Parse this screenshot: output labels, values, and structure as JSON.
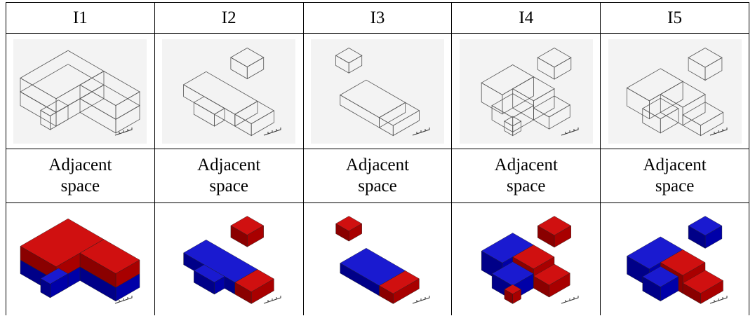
{
  "table": {
    "header": [
      "I1",
      "I2",
      "I3",
      "I4",
      "I5"
    ],
    "rows": [
      [
        "Adjacent space",
        "Adjacent space",
        "Adjacent space",
        "Adjacent space",
        "Adjacent space"
      ]
    ]
  }
}
